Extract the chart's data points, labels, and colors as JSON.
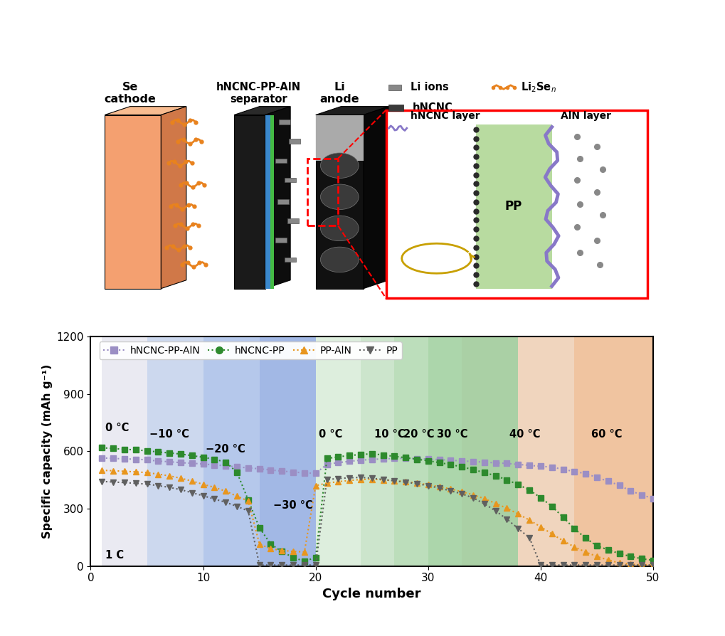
{
  "ylabel": "Specific capacity (mAh g⁻¹)",
  "xlabel": "Cycle number",
  "ylim": [
    0,
    1200
  ],
  "xlim": [
    0,
    50
  ],
  "yticks": [
    0,
    300,
    600,
    900,
    1200
  ],
  "xticks": [
    0,
    10,
    20,
    30,
    40,
    50
  ],
  "region_colors": [
    [
      1,
      5,
      "#eaeaf2"
    ],
    [
      5,
      10,
      "#ccdaee"
    ],
    [
      10,
      15,
      "#b8caeb"
    ],
    [
      15,
      20,
      "#a8bce6"
    ],
    [
      20,
      25,
      "#ddeedd"
    ],
    [
      25,
      27,
      "#cce8cc"
    ],
    [
      27,
      30,
      "#bbe0bb"
    ],
    [
      30,
      33,
      "#aad8aa"
    ],
    [
      33,
      37,
      "#b0d8b0"
    ],
    [
      37,
      42,
      "#f0d8c0"
    ],
    [
      42,
      50,
      "#f0c4a0"
    ]
  ],
  "temp_annotations": [
    [
      1.3,
      720,
      "0 °C"
    ],
    [
      5.2,
      690,
      "−10 °C"
    ],
    [
      10.2,
      610,
      "−20 °C"
    ],
    [
      16.2,
      315,
      "−30 °C"
    ],
    [
      20.3,
      690,
      "0 °C"
    ],
    [
      25.2,
      690,
      "10 °C"
    ],
    [
      27.8,
      690,
      "20 °C"
    ],
    [
      30.8,
      690,
      "30 °C"
    ],
    [
      37.2,
      690,
      "40 °C"
    ],
    [
      44.5,
      690,
      "60 °C"
    ],
    [
      1.3,
      55,
      "1 C"
    ]
  ],
  "hNCNC_PP_AlN_x": [
    1,
    2,
    3,
    4,
    5,
    6,
    7,
    8,
    9,
    10,
    11,
    12,
    13,
    14,
    15,
    16,
    17,
    18,
    19,
    20,
    21,
    22,
    23,
    24,
    25,
    26,
    27,
    28,
    29,
    30,
    31,
    32,
    33,
    34,
    35,
    36,
    37,
    38,
    39,
    40,
    41,
    42,
    43,
    44,
    45,
    46,
    47,
    48,
    49,
    50
  ],
  "hNCNC_PP_AlN_y": [
    565,
    562,
    560,
    558,
    555,
    548,
    545,
    540,
    537,
    533,
    528,
    524,
    518,
    513,
    508,
    502,
    496,
    491,
    487,
    484,
    532,
    540,
    547,
    553,
    557,
    560,
    562,
    563,
    561,
    559,
    556,
    553,
    549,
    546,
    543,
    539,
    536,
    531,
    526,
    521,
    517,
    505,
    494,
    483,
    463,
    443,
    422,
    392,
    372,
    352
  ],
  "hNCNC_PP_x": [
    1,
    2,
    3,
    4,
    5,
    6,
    7,
    8,
    9,
    10,
    11,
    12,
    13,
    14,
    15,
    16,
    17,
    18,
    19,
    20,
    21,
    22,
    23,
    24,
    25,
    26,
    27,
    28,
    29,
    30,
    31,
    32,
    33,
    34,
    35,
    36,
    37,
    38,
    39,
    40,
    41,
    42,
    43,
    44,
    45,
    46,
    47,
    48,
    49,
    50
  ],
  "hNCNC_PP_y": [
    618,
    614,
    610,
    607,
    602,
    596,
    591,
    585,
    577,
    568,
    558,
    543,
    490,
    345,
    200,
    115,
    75,
    45,
    25,
    45,
    562,
    570,
    578,
    582,
    587,
    580,
    573,
    566,
    558,
    550,
    540,
    530,
    518,
    504,
    488,
    472,
    450,
    426,
    397,
    357,
    312,
    255,
    195,
    146,
    105,
    85,
    65,
    50,
    38,
    30
  ],
  "PP_AlN_x": [
    1,
    2,
    3,
    4,
    5,
    6,
    7,
    8,
    9,
    10,
    11,
    12,
    13,
    14,
    15,
    16,
    17,
    18,
    19,
    20,
    21,
    22,
    23,
    24,
    25,
    26,
    27,
    28,
    29,
    30,
    31,
    32,
    33,
    34,
    35,
    36,
    37,
    38,
    39,
    40,
    41,
    42,
    43,
    44,
    45,
    46,
    47,
    48,
    49,
    50
  ],
  "PP_AlN_y": [
    500,
    498,
    495,
    492,
    488,
    480,
    471,
    459,
    444,
    427,
    411,
    391,
    365,
    340,
    115,
    90,
    82,
    76,
    74,
    420,
    433,
    441,
    447,
    452,
    454,
    450,
    446,
    441,
    433,
    425,
    414,
    403,
    388,
    372,
    352,
    327,
    302,
    272,
    240,
    205,
    168,
    132,
    100,
    73,
    50,
    32,
    16,
    9,
    7,
    6
  ],
  "PP_x": [
    1,
    2,
    3,
    4,
    5,
    6,
    7,
    8,
    9,
    10,
    11,
    12,
    13,
    14,
    15,
    16,
    17,
    18,
    19,
    20,
    21,
    22,
    23,
    24,
    25,
    26,
    27,
    28,
    29,
    30,
    31,
    32,
    33,
    34,
    35,
    36,
    37,
    38,
    39,
    40,
    41,
    42,
    43,
    44,
    45,
    46,
    47,
    48,
    49,
    50
  ],
  "PP_y": [
    442,
    439,
    436,
    432,
    428,
    420,
    411,
    399,
    383,
    367,
    350,
    333,
    312,
    288,
    5,
    5,
    5,
    5,
    5,
    5,
    452,
    457,
    461,
    463,
    459,
    452,
    445,
    438,
    430,
    420,
    407,
    393,
    377,
    356,
    325,
    288,
    245,
    196,
    148,
    5,
    5,
    5,
    5,
    5,
    5,
    5,
    5,
    5,
    5,
    5
  ],
  "legend_labels": [
    "hNCNC-PP-AlN",
    "hNCNC-PP",
    "PP-AlN",
    "PP"
  ],
  "legend_colors": [
    "#9b8ec4",
    "#2d8a2d",
    "#e8961e",
    "#606060"
  ],
  "legend_markers": [
    "s",
    "o",
    "^",
    "v"
  ],
  "bg_color": "#ffffff"
}
